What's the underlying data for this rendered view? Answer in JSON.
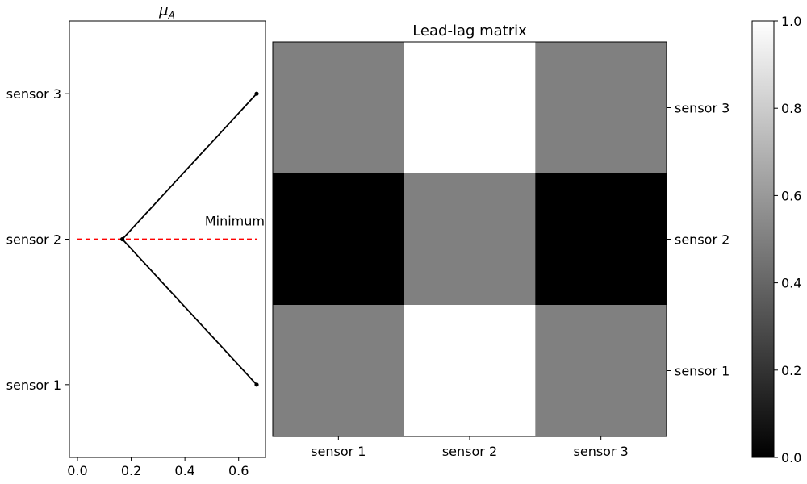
{
  "chart_data": [
    {
      "type": "line",
      "title": "μ_A",
      "title_main": "μ",
      "title_sub": "A",
      "xlabel": "",
      "ylabel": "",
      "xlim": [
        -0.03,
        0.7
      ],
      "ylim": [
        0.5,
        3.5
      ],
      "x_ticks": [
        0.0,
        0.2,
        0.4,
        0.6
      ],
      "x_tick_labels": [
        "0.0",
        "0.2",
        "0.4",
        "0.6"
      ],
      "y_ticks": [
        1,
        2,
        3
      ],
      "y_tick_labels": [
        "sensor 1",
        "sensor 2",
        "sensor 3"
      ],
      "series": [
        {
          "color": "#000000",
          "linestyle": "solid",
          "marker": "dot",
          "points": [
            {
              "x": 0.667,
              "y": 1
            },
            {
              "x": 0.167,
              "y": 2
            },
            {
              "x": 0.667,
              "y": 3
            }
          ]
        }
      ],
      "reference_line": {
        "y": 2,
        "x_start": 0.0,
        "x_end": 0.667,
        "color": "#ff0000",
        "linestyle": "dashed"
      },
      "annotation": {
        "text": "Minimum",
        "x": 0.667,
        "y": 2
      },
      "grid": false
    },
    {
      "type": "heatmap",
      "title": "Lead-lag matrix",
      "xlabel": "",
      "ylabel": "",
      "x_categories": [
        "sensor 1",
        "sensor 2",
        "sensor 3"
      ],
      "y_categories": [
        "sensor 1",
        "sensor 2",
        "sensor 3"
      ],
      "y_axis_side": "right",
      "matrix": [
        [
          0.5,
          1.0,
          0.5
        ],
        [
          0.0,
          0.5,
          0.0
        ],
        [
          0.5,
          1.0,
          0.5
        ]
      ],
      "colormap": "gray",
      "colorbar": {
        "vmin": 0.0,
        "vmax": 1.0,
        "ticks": [
          0.0,
          0.2,
          0.4,
          0.6,
          0.8,
          1.0
        ],
        "tick_labels": [
          "0.0",
          "0.2",
          "0.4",
          "0.6",
          "0.8",
          "1.0"
        ]
      }
    }
  ]
}
